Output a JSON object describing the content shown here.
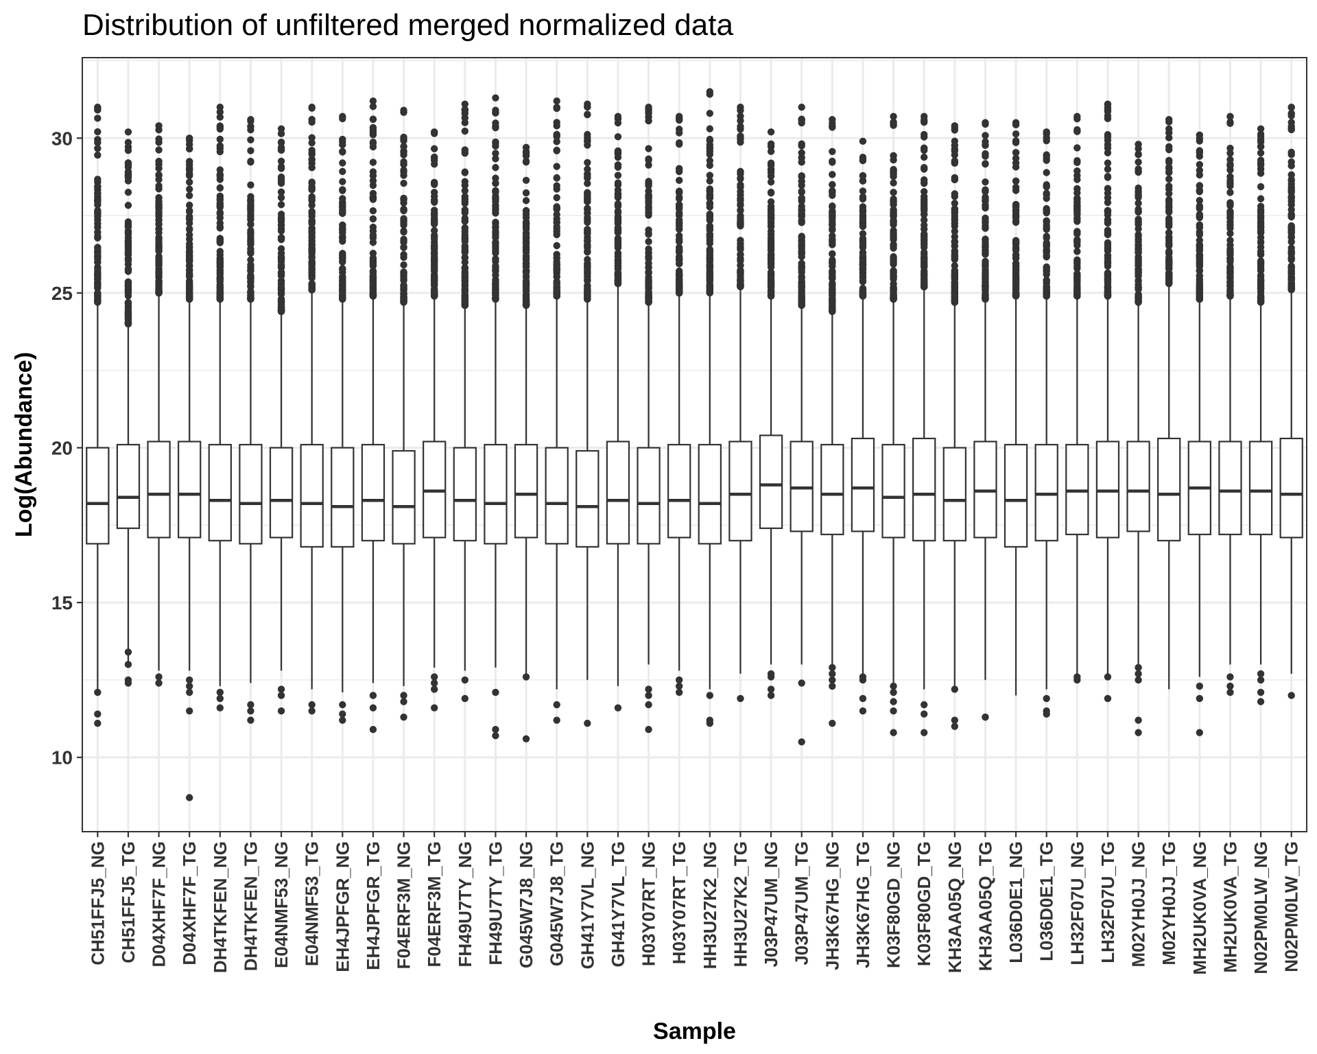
{
  "chart_data": {
    "type": "box",
    "title": "Distribution of unfiltered merged normalized data",
    "xlabel": "Sample",
    "ylabel": "Log(Abundance)",
    "ylim": [
      7.6,
      32.6
    ],
    "yticks": [
      10,
      15,
      20,
      25,
      30
    ],
    "grid": true,
    "categories": [
      "CH51FFJ5_NG",
      "CH51FFJ5_TG",
      "D04XHF7F_NG",
      "D04XHF7F_TG",
      "DH4TKFEN_NG",
      "DH4TKFEN_TG",
      "E04NMF53_NG",
      "E04NMF53_TG",
      "EH4JPFGR_NG",
      "EH4JPFGR_TG",
      "F04ERF3M_NG",
      "F04ERF3M_TG",
      "FH49U7TY_NG",
      "FH49U7TY_TG",
      "G045W7J8_NG",
      "G045W7J8_TG",
      "GH41Y7VL_NG",
      "GH41Y7VL_TG",
      "H03Y07RT_NG",
      "H03Y07RT_TG",
      "HH3U27K2_NG",
      "HH3U27K2_TG",
      "J03P47UM_NG",
      "J03P47UM_TG",
      "JH3K67HG_NG",
      "JH3K67HG_TG",
      "K03F80GD_NG",
      "K03F80GD_TG",
      "KH3AA05Q_NG",
      "KH3AA05Q_TG",
      "L036D0E1_NG",
      "L036D0E1_TG",
      "LH32F07U_NG",
      "LH32F07U_TG",
      "M02YH0JJ_NG",
      "M02YH0JJ_TG",
      "MH2UK0VA_NG",
      "MH2UK0VA_TG",
      "N02PM0LW_NG",
      "N02PM0LW_TG"
    ],
    "q1": [
      16.9,
      17.4,
      17.1,
      17.1,
      17.0,
      16.9,
      17.1,
      16.8,
      16.8,
      17.0,
      16.9,
      17.1,
      17.0,
      16.9,
      17.1,
      16.9,
      16.8,
      16.9,
      16.9,
      17.1,
      16.9,
      17.0,
      17.4,
      17.3,
      17.2,
      17.3,
      17.1,
      17.0,
      17.0,
      17.1,
      16.8,
      17.0,
      17.2,
      17.1,
      17.3,
      17.0,
      17.2,
      17.2,
      17.2,
      17.1
    ],
    "median": [
      18.2,
      18.4,
      18.5,
      18.5,
      18.3,
      18.2,
      18.3,
      18.2,
      18.1,
      18.3,
      18.1,
      18.6,
      18.3,
      18.2,
      18.5,
      18.2,
      18.1,
      18.3,
      18.2,
      18.3,
      18.2,
      18.5,
      18.8,
      18.7,
      18.5,
      18.7,
      18.4,
      18.5,
      18.3,
      18.6,
      18.3,
      18.5,
      18.6,
      18.6,
      18.6,
      18.5,
      18.7,
      18.6,
      18.6,
      18.5
    ],
    "q3": [
      20.0,
      20.1,
      20.2,
      20.2,
      20.1,
      20.1,
      20.0,
      20.1,
      20.0,
      20.1,
      19.9,
      20.2,
      20.0,
      20.1,
      20.1,
      20.0,
      19.9,
      20.2,
      20.0,
      20.1,
      20.1,
      20.2,
      20.4,
      20.2,
      20.1,
      20.3,
      20.1,
      20.3,
      20.0,
      20.2,
      20.1,
      20.1,
      20.1,
      20.2,
      20.2,
      20.3,
      20.2,
      20.2,
      20.2,
      20.3
    ],
    "whisker_low": [
      12.2,
      13.0,
      12.8,
      12.8,
      12.3,
      12.4,
      12.8,
      12.2,
      12.1,
      12.4,
      12.3,
      12.9,
      12.8,
      12.9,
      12.7,
      12.2,
      12.5,
      12.3,
      13.0,
      12.8,
      12.2,
      12.7,
      13.0,
      13.0,
      13.0,
      12.7,
      12.4,
      12.2,
      12.3,
      12.5,
      12.0,
      12.2,
      12.7,
      12.7,
      13.0,
      12.2,
      12.6,
      13.0,
      13.0,
      12.7
    ],
    "whisker_high": [
      24.7,
      24.0,
      25.0,
      24.8,
      24.8,
      24.8,
      24.4,
      25.1,
      24.8,
      24.9,
      24.7,
      24.9,
      24.6,
      24.8,
      24.6,
      24.9,
      24.8,
      25.3,
      24.7,
      25.0,
      25.0,
      25.2,
      24.9,
      24.6,
      24.4,
      24.9,
      24.8,
      25.2,
      24.7,
      24.8,
      24.9,
      24.9,
      24.9,
      24.9,
      24.7,
      25.3,
      24.8,
      24.9,
      24.7,
      25.1
    ],
    "outlier_max": [
      31.0,
      30.2,
      30.4,
      30.0,
      31.0,
      30.6,
      30.3,
      31.0,
      30.7,
      31.2,
      30.9,
      30.2,
      31.1,
      31.3,
      29.7,
      31.2,
      31.1,
      30.7,
      31.0,
      30.7,
      31.5,
      31.0,
      30.2,
      31.0,
      30.6,
      29.9,
      30.7,
      30.7,
      30.4,
      30.5,
      30.5,
      30.2,
      30.7,
      31.1,
      29.8,
      30.6,
      30.1,
      30.7,
      30.3,
      31.0
    ],
    "outliers_low": [
      [
        12.1,
        11.4,
        11.1
      ],
      [
        13.4,
        13.0,
        12.5,
        12.4
      ],
      [
        12.6,
        12.4
      ],
      [
        12.5,
        12.3,
        12.1,
        11.5,
        8.7
      ],
      [
        12.1,
        11.9,
        11.6
      ],
      [
        11.7,
        11.5,
        11.2
      ],
      [
        12.2,
        12.0,
        11.5
      ],
      [
        11.7,
        11.5
      ],
      [
        11.7,
        11.4,
        11.2
      ],
      [
        12.0,
        11.6,
        10.9
      ],
      [
        12.0,
        11.8,
        11.3
      ],
      [
        12.6,
        12.4,
        12.2,
        11.6
      ],
      [
        12.5,
        11.9
      ],
      [
        12.1,
        10.9,
        10.7
      ],
      [
        12.6,
        10.6
      ],
      [
        11.7,
        11.2
      ],
      [
        11.1
      ],
      [
        11.6
      ],
      [
        12.2,
        12.0,
        11.7,
        10.9
      ],
      [
        12.5,
        12.3,
        12.1
      ],
      [
        12.0,
        11.2,
        11.1
      ],
      [
        11.9
      ],
      [
        12.7,
        12.6,
        12.2,
        12.0
      ],
      [
        12.4,
        10.5
      ],
      [
        12.9,
        12.7,
        12.5,
        12.3,
        11.1
      ],
      [
        12.6,
        12.5,
        11.9,
        11.5
      ],
      [
        12.3,
        12.1,
        11.8,
        11.5,
        10.8
      ],
      [
        11.7,
        11.4,
        10.8
      ],
      [
        12.2,
        11.2,
        11.0
      ],
      [
        11.3,
        11.3
      ],
      [],
      [
        11.9,
        11.5,
        11.4
      ],
      [
        12.6,
        12.5
      ],
      [
        12.6,
        11.9
      ],
      [
        12.9,
        12.7,
        12.5,
        11.2,
        10.8
      ],
      [],
      [
        12.3,
        11.9,
        10.8
      ],
      [
        12.6,
        12.3,
        12.1
      ],
      [
        12.7,
        12.5,
        12.1,
        11.8
      ],
      [
        12.0
      ]
    ],
    "colors": {
      "box_fill": "#ffffff",
      "box_stroke": "#333333",
      "point": "#333333",
      "grid": "#ebebeb",
      "panel_border": "#333333"
    }
  }
}
